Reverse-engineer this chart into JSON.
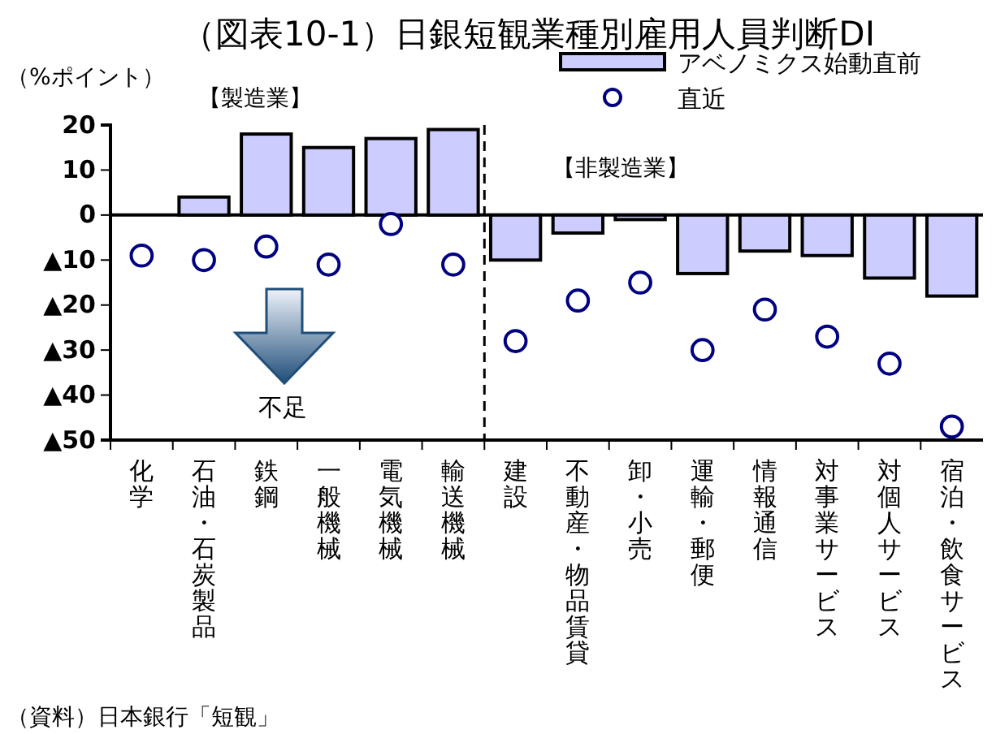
{
  "chart_data": {
    "type": "bar",
    "title": "（図表10-1）日銀短観業種別雇用人員判断DI",
    "ylabel": "（%ポイント）",
    "categories": [
      "化学",
      "石油・石炭製品",
      "鉄鋼",
      "一般機械",
      "電気機械",
      "輸送機械",
      "建設",
      "不動産・物品賃貸",
      "卸・小売",
      "運輸・郵便",
      "情報通信",
      "対事業サービス",
      "対個人サービス",
      "宿泊・飲食サービス"
    ],
    "series": [
      {
        "name": "アベノミクス始動直前",
        "type": "bar",
        "color": "#ccccff",
        "values": [
          0,
          4,
          18,
          15,
          17,
          19,
          -10,
          -4,
          -1,
          -13,
          -8,
          -9,
          -14,
          -18
        ]
      },
      {
        "name": "直近",
        "type": "scatter",
        "color": "#000080",
        "values": [
          -9,
          -10,
          -7,
          -11,
          -2,
          -11,
          -28,
          -19,
          -15,
          -30,
          -21,
          -27,
          -33,
          -47
        ]
      }
    ],
    "ylim": [
      -50,
      20
    ],
    "yticks": [
      {
        "value": -50,
        "label": "▲50"
      },
      {
        "value": -40,
        "label": "▲40"
      },
      {
        "value": -30,
        "label": "▲30"
      },
      {
        "value": -20,
        "label": "▲20"
      },
      {
        "value": -10,
        "label": "▲10"
      },
      0,
      10,
      20
    ],
    "marker": "circle",
    "grid": false,
    "legend": "top right",
    "ref_lines": [
      {
        "axis": "x",
        "value": "建設",
        "line_style": "dashed",
        "color": "#000000"
      }
    ],
    "annotations": [
      "【製造業】",
      "【非製造業】",
      "不足",
      "（資料）日本銀行「短観」"
    ]
  }
}
